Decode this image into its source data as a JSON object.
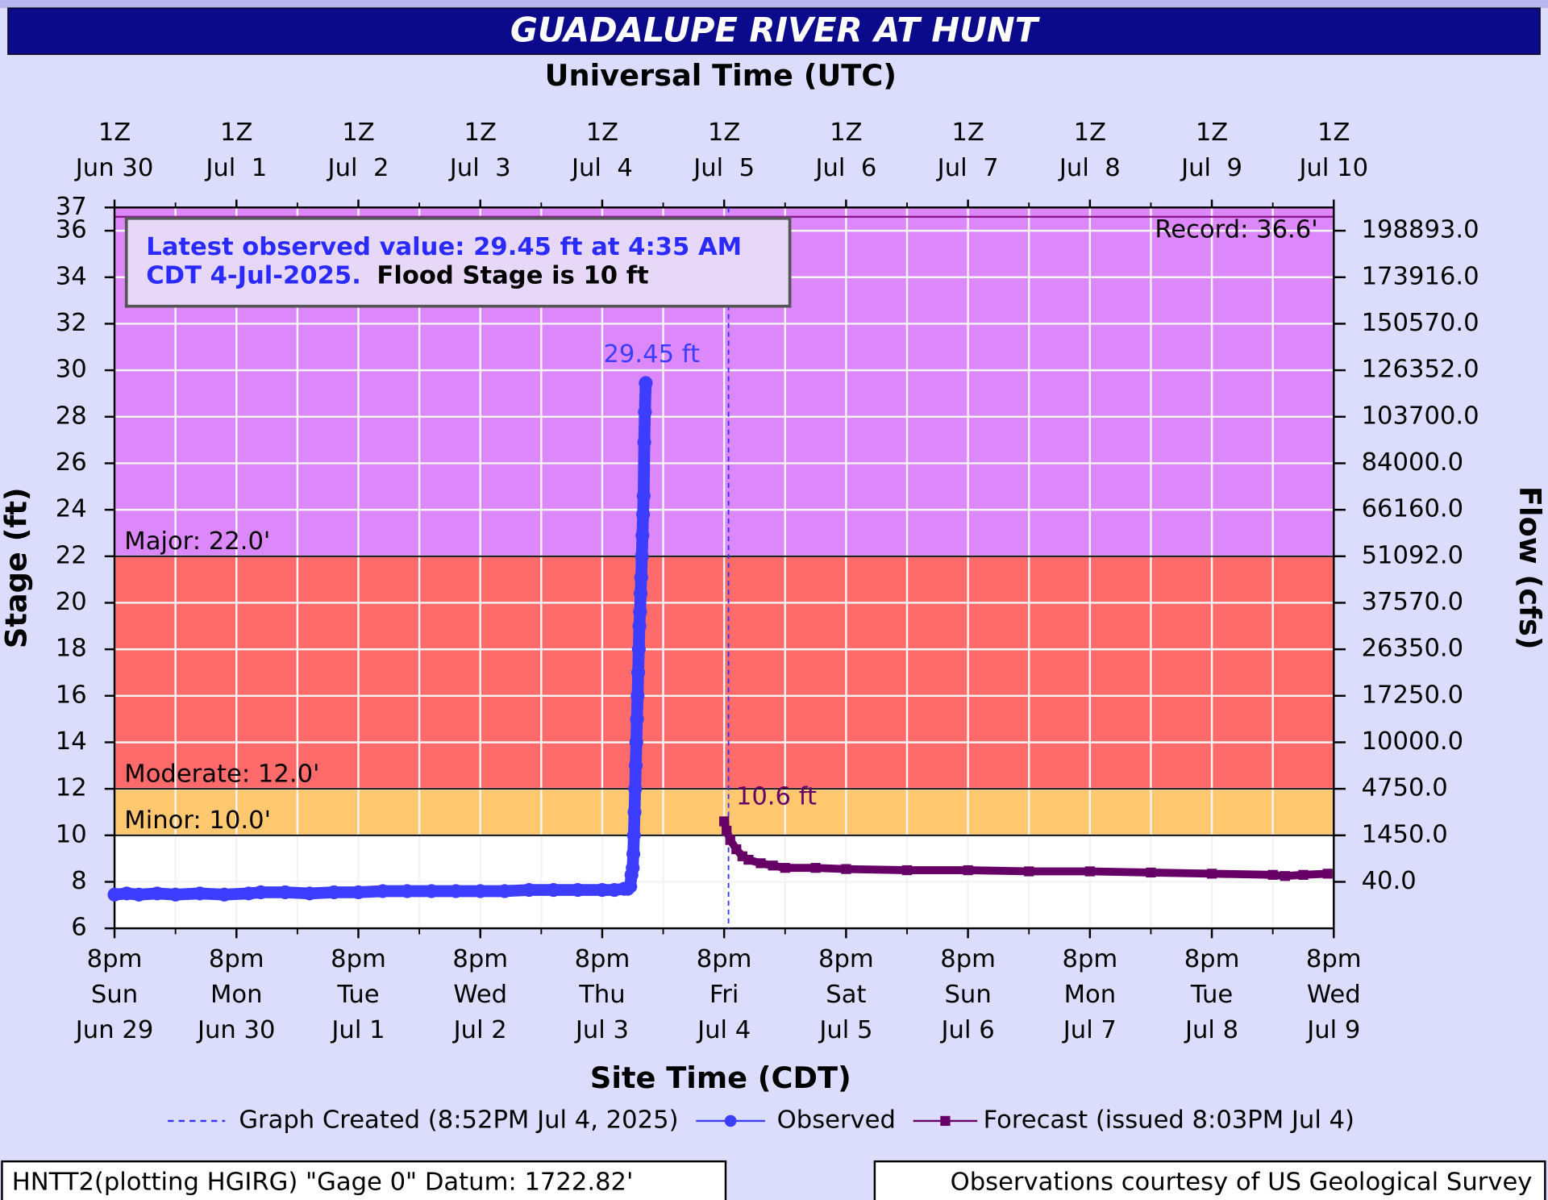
{
  "chart_data": {
    "type": "line",
    "title": "GUADALUPE RIVER AT HUNT",
    "x2_label": "Universal Time (UTC)",
    "x_label": "Site Time (CDT)",
    "y_label": "Stage (ft)",
    "y2_label": "Flow (cfs)",
    "xlim": [
      0,
      10
    ],
    "xticks": [
      {
        "value": 0,
        "label": [
          "8pm",
          "Sun",
          "Jun 29"
        ]
      },
      {
        "value": 1,
        "label": [
          "8pm",
          "Mon",
          "Jun 30"
        ]
      },
      {
        "value": 2,
        "label": [
          "8pm",
          "Tue",
          "Jul 1"
        ]
      },
      {
        "value": 3,
        "label": [
          "8pm",
          "Wed",
          "Jul 2"
        ]
      },
      {
        "value": 4,
        "label": [
          "8pm",
          "Thu",
          "Jul 3"
        ]
      },
      {
        "value": 5,
        "label": [
          "8pm",
          "Fri",
          "Jul 4"
        ]
      },
      {
        "value": 6,
        "label": [
          "8pm",
          "Sat",
          "Jul 5"
        ]
      },
      {
        "value": 7,
        "label": [
          "8pm",
          "Sun",
          "Jul 6"
        ]
      },
      {
        "value": 8,
        "label": [
          "8pm",
          "Mon",
          "Jul 7"
        ]
      },
      {
        "value": 9,
        "label": [
          "8pm",
          "Tue",
          "Jul 8"
        ]
      },
      {
        "value": 10,
        "label": [
          "8pm",
          "Wed",
          "Jul 9"
        ]
      }
    ],
    "x2ticks": [
      {
        "value": 0,
        "label": [
          "1Z",
          "Jun 30"
        ]
      },
      {
        "value": 1,
        "label": [
          "1Z",
          "Jul  1"
        ]
      },
      {
        "value": 2,
        "label": [
          "1Z",
          "Jul  2"
        ]
      },
      {
        "value": 3,
        "label": [
          "1Z",
          "Jul  3"
        ]
      },
      {
        "value": 4,
        "label": [
          "1Z",
          "Jul  4"
        ]
      },
      {
        "value": 5,
        "label": [
          "1Z",
          "Jul  5"
        ]
      },
      {
        "value": 6,
        "label": [
          "1Z",
          "Jul  6"
        ]
      },
      {
        "value": 7,
        "label": [
          "1Z",
          "Jul  7"
        ]
      },
      {
        "value": 8,
        "label": [
          "1Z",
          "Jul  8"
        ]
      },
      {
        "value": 9,
        "label": [
          "1Z",
          "Jul  9"
        ]
      },
      {
        "value": 10,
        "label": [
          "1Z",
          "Jul 10"
        ]
      }
    ],
    "ylim": [
      6,
      37
    ],
    "yticks": [
      6,
      8,
      10,
      12,
      14,
      16,
      18,
      20,
      22,
      24,
      26,
      28,
      30,
      32,
      34,
      36,
      37
    ],
    "y2ticks": [
      {
        "value": 40,
        "label": "40.0",
        "stage": 8
      },
      {
        "value": 1450,
        "label": "1450.0",
        "stage": 10
      },
      {
        "value": 4750,
        "label": "4750.0",
        "stage": 12
      },
      {
        "value": 10000,
        "label": "10000.0",
        "stage": 14
      },
      {
        "value": 17250,
        "label": "17250.0",
        "stage": 16
      },
      {
        "value": 26350,
        "label": "26350.0",
        "stage": 18
      },
      {
        "value": 37570,
        "label": "37570.0",
        "stage": 20
      },
      {
        "value": 51092,
        "label": "51092.0",
        "stage": 22
      },
      {
        "value": 66160,
        "label": "66160.0",
        "stage": 24
      },
      {
        "value": 84000,
        "label": "84000.0",
        "stage": 26
      },
      {
        "value": 103700,
        "label": "103700.0",
        "stage": 28
      },
      {
        "value": 126352,
        "label": "126352.0",
        "stage": 30
      },
      {
        "value": 150570,
        "label": "150570.0",
        "stage": 32
      },
      {
        "value": 173916,
        "label": "173916.0",
        "stage": 34
      },
      {
        "value": 198893,
        "label": "198893.0",
        "stage": 36
      }
    ],
    "grid": true,
    "thresholds": [
      {
        "value": 10,
        "label": "Minor: 10.0'",
        "color": "#ffc86e"
      },
      {
        "value": 12,
        "label": "Moderate: 12.0'",
        "color": "#ff6a6a"
      },
      {
        "value": 22,
        "label": "Major: 22.0'",
        "color": "#dd88fa"
      }
    ],
    "record": {
      "value": 36.6,
      "label": "Record: 36.6'",
      "color": "#8c1a8c"
    },
    "annotation": {
      "lines": [
        "Latest observed value: 29.45 ft at 4:35 AM",
        "CDT 4-Jul-2025."
      ],
      "flood_stage": "Flood Stage is 10 ft"
    },
    "graph_created": {
      "x": 5.036,
      "label": "Graph Created (8:52PM Jul 4, 2025)",
      "color": "#3333ff"
    },
    "series": [
      {
        "name": "Observed",
        "color": "#3d3dff",
        "marker": "circle",
        "x": [
          0,
          0.1,
          0.2,
          0.35,
          0.5,
          0.7,
          0.9,
          1.1,
          1.2,
          1.4,
          1.6,
          1.8,
          2.0,
          2.2,
          2.4,
          2.6,
          2.8,
          3.0,
          3.2,
          3.4,
          3.6,
          3.8,
          4.0,
          4.1,
          4.18,
          4.21,
          4.23,
          4.24,
          4.25,
          4.255,
          4.26,
          4.265,
          4.27,
          4.275,
          4.28,
          4.285,
          4.29,
          4.295,
          4.3,
          4.305,
          4.31,
          4.315,
          4.32,
          4.325,
          4.33,
          4.335,
          4.34,
          4.345,
          4.35,
          4.357
        ],
        "values": [
          7.45,
          7.5,
          7.45,
          7.5,
          7.45,
          7.5,
          7.45,
          7.5,
          7.55,
          7.55,
          7.5,
          7.55,
          7.55,
          7.6,
          7.6,
          7.6,
          7.6,
          7.6,
          7.6,
          7.65,
          7.65,
          7.65,
          7.65,
          7.65,
          7.7,
          7.7,
          7.8,
          8.3,
          8.6,
          9.2,
          10.0,
          11.0,
          12.0,
          13.0,
          14.0,
          15.0,
          16.0,
          17.0,
          18.0,
          19.0,
          19.6,
          20.4,
          21.1,
          22.0,
          22.9,
          23.8,
          24.6,
          26.9,
          28.2,
          29.45
        ],
        "value_labels": [
          null,
          null,
          null,
          null,
          null,
          null,
          null,
          null,
          null,
          null,
          null,
          null,
          null,
          null,
          null,
          null,
          null,
          null,
          null,
          null,
          null,
          null,
          null,
          null,
          null,
          null,
          null,
          null,
          null,
          null,
          null,
          null,
          null,
          null,
          null,
          null,
          null,
          null,
          null,
          null,
          null,
          null,
          null,
          null,
          null,
          null,
          null,
          null,
          null,
          "29.45 ft"
        ]
      },
      {
        "name": "Forecast (issued 8:03PM Jul 4)",
        "color": "#660066",
        "marker": "square",
        "x": [
          5.0,
          5.02,
          5.05,
          5.1,
          5.15,
          5.2,
          5.3,
          5.4,
          5.5,
          5.75,
          6.0,
          6.5,
          7.0,
          7.5,
          8.0,
          8.5,
          9.0,
          9.5,
          9.6,
          9.75,
          9.95
        ],
        "values": [
          10.6,
          10.2,
          9.8,
          9.4,
          9.1,
          8.95,
          8.8,
          8.7,
          8.6,
          8.6,
          8.55,
          8.5,
          8.5,
          8.45,
          8.45,
          8.4,
          8.35,
          8.3,
          8.25,
          8.3,
          8.35
        ],
        "value_labels": [
          "10.6 ft",
          null,
          null,
          null,
          null,
          null,
          null,
          null,
          null,
          null,
          null,
          null,
          null,
          null,
          null,
          null,
          null,
          null,
          null,
          null,
          null
        ]
      }
    ],
    "footer_left": "HNTT2(plotting HGIRG) \"Gage 0\" Datum: 1722.82'",
    "footer_right": "Observations courtesy of US Geological Survey"
  }
}
